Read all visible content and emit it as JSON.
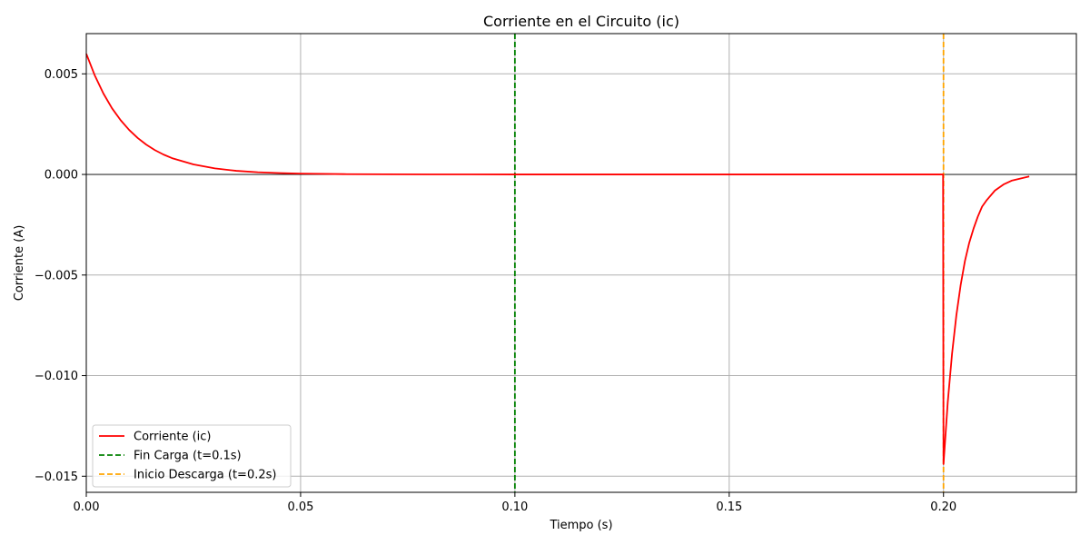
{
  "chart_data": {
    "type": "line",
    "title": "Corriente en el Circuito (ic)",
    "xlabel": "Tiempo (s)",
    "ylabel": "Corriente (A)",
    "xlim": [
      0,
      0.231
    ],
    "ylim": [
      -0.0158,
      0.007
    ],
    "x_ticks": [
      0.0,
      0.05,
      0.1,
      0.15,
      0.2
    ],
    "x_tick_labels": [
      "0.00",
      "0.05",
      "0.10",
      "0.15",
      "0.20"
    ],
    "y_ticks": [
      0.005,
      0.0,
      -0.005,
      -0.01,
      -0.015
    ],
    "y_tick_labels": [
      "0.005",
      "0.000",
      "−0.005",
      "−0.010",
      "−0.015"
    ],
    "grid": true,
    "legend_position": "lower-left",
    "series": [
      {
        "name": "Corriente (ic)",
        "color": "#ff0000",
        "style": "solid",
        "x": [
          0.0,
          0.002,
          0.004,
          0.006,
          0.008,
          0.01,
          0.012,
          0.014,
          0.016,
          0.018,
          0.02,
          0.025,
          0.03,
          0.035,
          0.04,
          0.045,
          0.05,
          0.06,
          0.07,
          0.08,
          0.09,
          0.1,
          0.12,
          0.14,
          0.16,
          0.18,
          0.1999,
          0.2,
          0.201,
          0.202,
          0.203,
          0.204,
          0.205,
          0.206,
          0.207,
          0.208,
          0.209,
          0.21,
          0.212,
          0.214,
          0.216,
          0.218,
          0.22
        ],
        "y": [
          0.006,
          0.00491,
          0.00402,
          0.00329,
          0.0027,
          0.00221,
          0.00181,
          0.00148,
          0.00121,
          0.00099,
          0.00081,
          0.0005,
          0.0003,
          0.00018,
          0.00011,
          7e-05,
          4e-05,
          1.5e-05,
          6e-06,
          2e-06,
          1e-06,
          0.0,
          0.0,
          0.0,
          0.0,
          0.0,
          0.0,
          -0.0144,
          -0.0113,
          -0.0089,
          -0.007,
          -0.0055,
          -0.0043,
          -0.0034,
          -0.0027,
          -0.0021,
          -0.0016,
          -0.0013,
          -0.0008,
          -0.0005,
          -0.0003,
          -0.0002,
          -0.0001
        ]
      }
    ],
    "vlines": [
      {
        "name": "Fin Carga (t=0.1s)",
        "x": 0.1,
        "color": "#008000",
        "style": "dashed"
      },
      {
        "name": "Inicio Descarga (t=0.2s)",
        "x": 0.2,
        "color": "#ffa500",
        "style": "dashed"
      }
    ],
    "hline": {
      "y": 0.0,
      "color": "#000000"
    }
  }
}
